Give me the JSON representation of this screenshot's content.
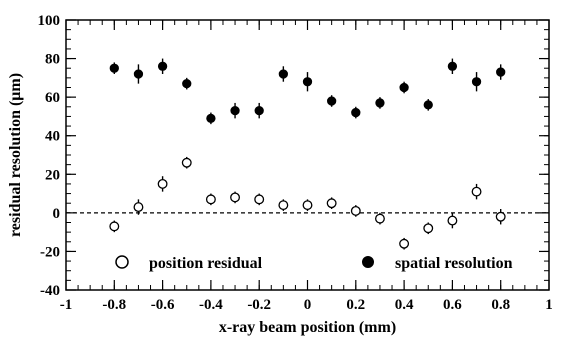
{
  "chart_data": {
    "type": "scatter",
    "xlabel": "x-ray beam position (mm)",
    "ylabel": "residual resolution (μm)",
    "xlim": [
      -1,
      1
    ],
    "ylim": [
      -40,
      100
    ],
    "x_ticks": [
      "-1",
      "-0.8",
      "-0.6",
      "-0.4",
      "-0.2",
      "0",
      "0.2",
      "0.4",
      "0.6",
      "0.8",
      "1"
    ],
    "y_ticks": [
      "-40",
      "-20",
      "0",
      "20",
      "40",
      "60",
      "80",
      "100"
    ],
    "grid": false,
    "reference_line": {
      "y": 0,
      "style": "dashed"
    },
    "legend_placement": "bottom",
    "series": [
      {
        "name": "position residual",
        "marker": "open-circle",
        "color": "#000000",
        "points": [
          {
            "x": -0.8,
            "y": -7,
            "err": 3
          },
          {
            "x": -0.7,
            "y": 3,
            "err": 4
          },
          {
            "x": -0.6,
            "y": 15,
            "err": 4
          },
          {
            "x": -0.5,
            "y": 26,
            "err": 3
          },
          {
            "x": -0.4,
            "y": 7,
            "err": 3
          },
          {
            "x": -0.3,
            "y": 8,
            "err": 3
          },
          {
            "x": -0.2,
            "y": 7,
            "err": 3
          },
          {
            "x": -0.1,
            "y": 4,
            "err": 3
          },
          {
            "x": 0.0,
            "y": 4,
            "err": 3
          },
          {
            "x": 0.1,
            "y": 5,
            "err": 3
          },
          {
            "x": 0.2,
            "y": 1,
            "err": 3
          },
          {
            "x": 0.3,
            "y": -3,
            "err": 3
          },
          {
            "x": 0.4,
            "y": -16,
            "err": 3
          },
          {
            "x": 0.5,
            "y": -8,
            "err": 3
          },
          {
            "x": 0.6,
            "y": -4,
            "err": 4
          },
          {
            "x": 0.7,
            "y": 11,
            "err": 4
          },
          {
            "x": 0.8,
            "y": -2,
            "err": 4
          }
        ]
      },
      {
        "name": "spatial resolution",
        "marker": "filled-circle",
        "color": "#000000",
        "points": [
          {
            "x": -0.8,
            "y": 75,
            "err": 3
          },
          {
            "x": -0.7,
            "y": 72,
            "err": 5
          },
          {
            "x": -0.6,
            "y": 76,
            "err": 4
          },
          {
            "x": -0.5,
            "y": 67,
            "err": 3
          },
          {
            "x": -0.4,
            "y": 49,
            "err": 3
          },
          {
            "x": -0.3,
            "y": 53,
            "err": 4
          },
          {
            "x": -0.2,
            "y": 53,
            "err": 4
          },
          {
            "x": -0.1,
            "y": 72,
            "err": 4
          },
          {
            "x": 0.0,
            "y": 68,
            "err": 5
          },
          {
            "x": 0.1,
            "y": 58,
            "err": 3
          },
          {
            "x": 0.2,
            "y": 52,
            "err": 3
          },
          {
            "x": 0.3,
            "y": 57,
            "err": 3
          },
          {
            "x": 0.4,
            "y": 65,
            "err": 3
          },
          {
            "x": 0.5,
            "y": 56,
            "err": 3
          },
          {
            "x": 0.6,
            "y": 76,
            "err": 4
          },
          {
            "x": 0.7,
            "y": 68,
            "err": 5
          },
          {
            "x": 0.8,
            "y": 73,
            "err": 4
          }
        ]
      }
    ]
  }
}
